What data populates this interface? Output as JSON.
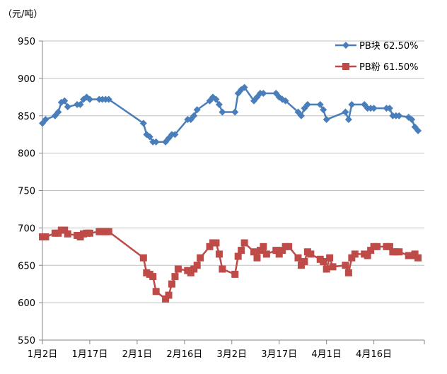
{
  "chart_data": {
    "type": "line",
    "unit_label": "（元/吨）",
    "ylim": [
      550,
      950
    ],
    "y_ticks": [
      550,
      600,
      650,
      700,
      750,
      800,
      850,
      900,
      950
    ],
    "x_range": [
      "1月2日",
      "5月2日"
    ],
    "x_ticks": [
      {
        "date": "1月2日",
        "label": "1月2日"
      },
      {
        "date": "1月17日",
        "label": "1月17日"
      },
      {
        "date": "2月1日",
        "label": "2月1日"
      },
      {
        "date": "2月16日",
        "label": "2月16日"
      },
      {
        "date": "3月2日",
        "label": "3月2日"
      },
      {
        "date": "3月17日",
        "label": "3月17日"
      },
      {
        "date": "4月1日",
        "label": "4月1日"
      },
      {
        "date": "4月16日",
        "label": "4月16日"
      }
    ],
    "grid": true,
    "legend_position": "top-right",
    "series": [
      {
        "name": "PB块 62.50%",
        "color": "#4A7EBB",
        "marker": "diamond",
        "points": [
          [
            "1月2日",
            840
          ],
          [
            "1月3日",
            845
          ],
          [
            "1月6日",
            850
          ],
          [
            "1月7日",
            855
          ],
          [
            "1月8日",
            868
          ],
          [
            "1月9日",
            870
          ],
          [
            "1月10日",
            862
          ],
          [
            "1月13日",
            865
          ],
          [
            "1月14日",
            865
          ],
          [
            "1月15日",
            872
          ],
          [
            "1月16日",
            875
          ],
          [
            "1月17日",
            872
          ],
          [
            "1月20日",
            872
          ],
          [
            "1月21日",
            872
          ],
          [
            "1月22日",
            872
          ],
          [
            "1月23日",
            872
          ],
          [
            "2月3日",
            840
          ],
          [
            "2月4日",
            825
          ],
          [
            "2月5日",
            822
          ],
          [
            "2月6日",
            815
          ],
          [
            "2月7日",
            815
          ],
          [
            "2月10日",
            815
          ],
          [
            "2月11日",
            820
          ],
          [
            "2月12日",
            825
          ],
          [
            "2月13日",
            825
          ],
          [
            "2月17日",
            845
          ],
          [
            "2月18日",
            845
          ],
          [
            "2月19日",
            850
          ],
          [
            "2月20日",
            858
          ],
          [
            "2月24日",
            870
          ],
          [
            "2月25日",
            875
          ],
          [
            "2月26日",
            872
          ],
          [
            "2月27日",
            865
          ],
          [
            "2月28日",
            855
          ],
          [
            "3月3日",
            855
          ],
          [
            "3月4日",
            880
          ],
          [
            "3月5日",
            885
          ],
          [
            "3月6日",
            888
          ],
          [
            "3月9日",
            870
          ],
          [
            "3月10日",
            875
          ],
          [
            "3月11日",
            880
          ],
          [
            "3月12日",
            880
          ],
          [
            "3月16日",
            880
          ],
          [
            "3月17日",
            875
          ],
          [
            "3月18日",
            872
          ],
          [
            "3月19日",
            870
          ],
          [
            "3月23日",
            855
          ],
          [
            "3月24日",
            850
          ],
          [
            "3月25日",
            860
          ],
          [
            "3月26日",
            865
          ],
          [
            "3月30日",
            865
          ],
          [
            "3月31日",
            858
          ],
          [
            "4月1日",
            845
          ],
          [
            "4月7日",
            855
          ],
          [
            "4月8日",
            845
          ],
          [
            "4月9日",
            865
          ],
          [
            "4月13日",
            865
          ],
          [
            "4月14日",
            860
          ],
          [
            "4月15日",
            860
          ],
          [
            "4月16日",
            860
          ],
          [
            "4月20日",
            860
          ],
          [
            "4月21日",
            860
          ],
          [
            "4月22日",
            850
          ],
          [
            "4月23日",
            850
          ],
          [
            "4月24日",
            850
          ],
          [
            "4月27日",
            848
          ],
          [
            "4月28日",
            845
          ],
          [
            "4月29日",
            835
          ],
          [
            "4月30日",
            830
          ]
        ]
      },
      {
        "name": "PB粉 61.50%",
        "color": "#BE4B48",
        "marker": "square",
        "points": [
          [
            "1月2日",
            688
          ],
          [
            "1月3日",
            688
          ],
          [
            "1月6日",
            693
          ],
          [
            "1月7日",
            693
          ],
          [
            "1月8日",
            697
          ],
          [
            "1月9日",
            697
          ],
          [
            "1月10日",
            692
          ],
          [
            "1月13日",
            690
          ],
          [
            "1月14日",
            688
          ],
          [
            "1月15日",
            692
          ],
          [
            "1月16日",
            693
          ],
          [
            "1月17日",
            693
          ],
          [
            "1月20日",
            695
          ],
          [
            "1月21日",
            695
          ],
          [
            "1月22日",
            695
          ],
          [
            "1月23日",
            695
          ],
          [
            "2月3日",
            660
          ],
          [
            "2月4日",
            640
          ],
          [
            "2月5日",
            638
          ],
          [
            "2月6日",
            635
          ],
          [
            "2月7日",
            615
          ],
          [
            "2月10日",
            605
          ],
          [
            "2月11日",
            610
          ],
          [
            "2月12日",
            625
          ],
          [
            "2月13日",
            635
          ],
          [
            "2月14日",
            645
          ],
          [
            "2月17日",
            643
          ],
          [
            "2月18日",
            640
          ],
          [
            "2月19日",
            645
          ],
          [
            "2月20日",
            650
          ],
          [
            "2月21日",
            660
          ],
          [
            "2月24日",
            675
          ],
          [
            "2月25日",
            680
          ],
          [
            "2月26日",
            680
          ],
          [
            "2月27日",
            665
          ],
          [
            "2月28日",
            645
          ],
          [
            "3月3日",
            638
          ],
          [
            "3月4日",
            662
          ],
          [
            "3月5日",
            670
          ],
          [
            "3月6日",
            680
          ],
          [
            "3月9日",
            668
          ],
          [
            "3月10日",
            660
          ],
          [
            "3月11日",
            670
          ],
          [
            "3月12日",
            675
          ],
          [
            "3月13日",
            665
          ],
          [
            "3月16日",
            670
          ],
          [
            "3月17日",
            665
          ],
          [
            "3月18日",
            670
          ],
          [
            "3月19日",
            675
          ],
          [
            "3月20日",
            675
          ],
          [
            "3月23日",
            660
          ],
          [
            "3月24日",
            650
          ],
          [
            "3月25日",
            655
          ],
          [
            "3月26日",
            668
          ],
          [
            "3月27日",
            665
          ],
          [
            "3月30日",
            658
          ],
          [
            "3月31日",
            655
          ],
          [
            "4月1日",
            645
          ],
          [
            "4月2日",
            660
          ],
          [
            "4月3日",
            648
          ],
          [
            "4月7日",
            650
          ],
          [
            "4月8日",
            640
          ],
          [
            "4月9日",
            660
          ],
          [
            "4月10日",
            665
          ],
          [
            "4月13日",
            665
          ],
          [
            "4月14日",
            663
          ],
          [
            "4月15日",
            670
          ],
          [
            "4月16日",
            675
          ],
          [
            "4月17日",
            675
          ],
          [
            "4月20日",
            675
          ],
          [
            "4月21日",
            675
          ],
          [
            "4月22日",
            668
          ],
          [
            "4月23日",
            668
          ],
          [
            "4月24日",
            668
          ],
          [
            "4月27日",
            663
          ],
          [
            "4月28日",
            663
          ],
          [
            "4月29日",
            665
          ],
          [
            "4月30日",
            660
          ]
        ]
      }
    ]
  }
}
